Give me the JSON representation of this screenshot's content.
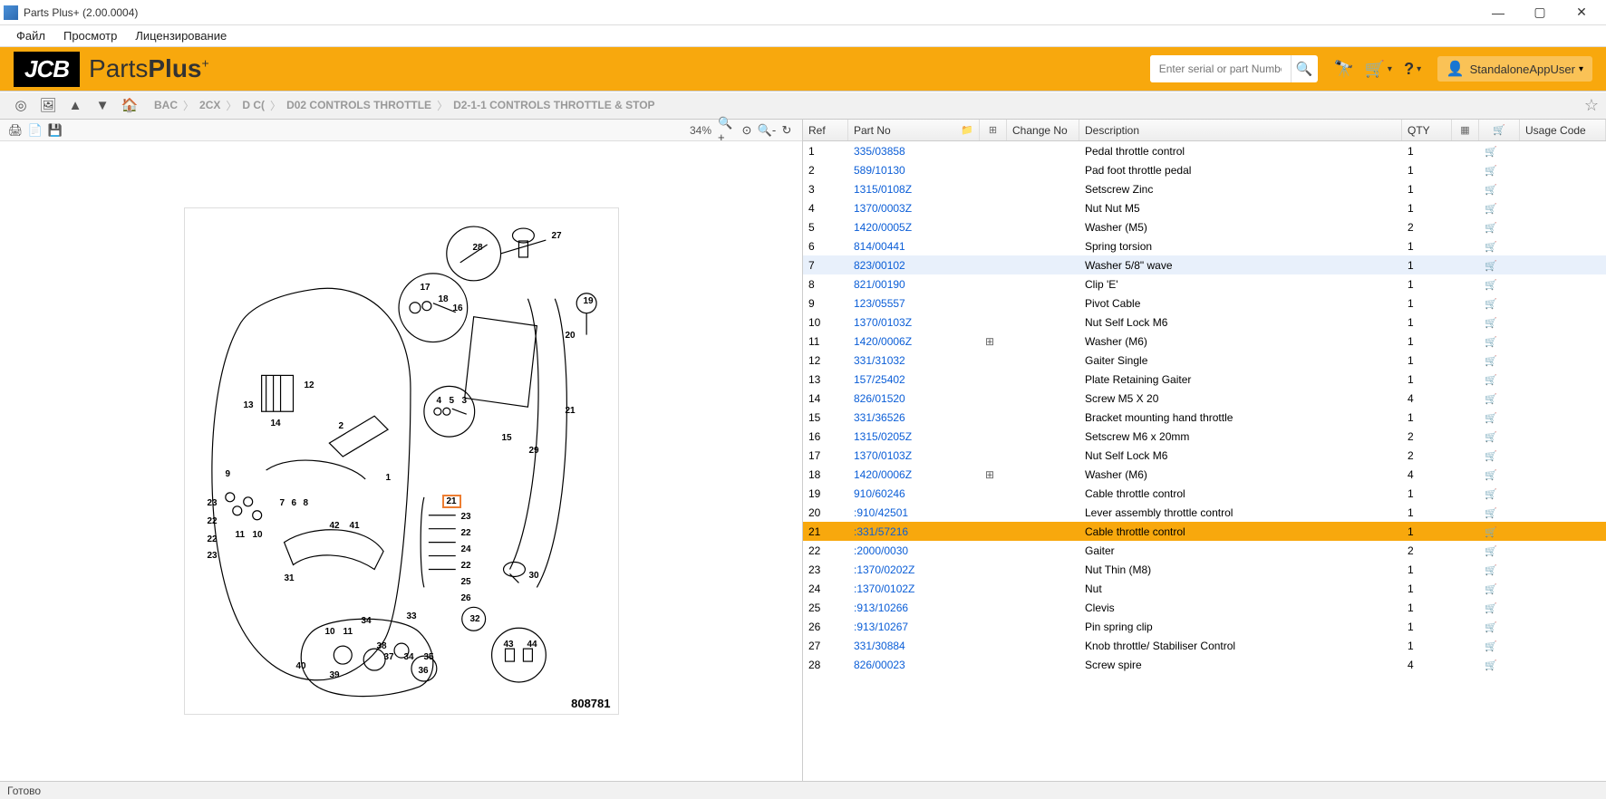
{
  "window": {
    "title": "Parts Plus+  (2.00.0004)"
  },
  "menu": {
    "file": "Файл",
    "view": "Просмотр",
    "license": "Лицензирование"
  },
  "brand": {
    "logo": "JCB",
    "name1": "Parts",
    "name2": "Plus"
  },
  "search": {
    "placeholder": "Enter serial or part Number"
  },
  "user": {
    "name": "StandaloneAppUser"
  },
  "breadcrumb": {
    "b1": "BAC",
    "b2": "2CX",
    "b3": "D C(",
    "b4": "D02 CONTROLS THROTTLE",
    "b5": "D2-1-1 CONTROLS THROTTLE & STOP"
  },
  "toolbar": {
    "zoom": "34%"
  },
  "diagram": {
    "number": "808781",
    "highlight_ref": "21"
  },
  "columns": {
    "ref": "Ref",
    "part": "Part No",
    "chg": "Change No",
    "desc": "Description",
    "qty": "QTY",
    "usage": "Usage Code"
  },
  "parts": [
    {
      "ref": "1",
      "part": "335/03858",
      "desc": "Pedal throttle control",
      "qty": "1"
    },
    {
      "ref": "2",
      "part": "589/10130",
      "desc": "Pad foot throttle pedal",
      "qty": "1"
    },
    {
      "ref": "3",
      "part": "1315/0108Z",
      "desc": "Setscrew Zinc",
      "qty": "1"
    },
    {
      "ref": "4",
      "part": "1370/0003Z",
      "desc": "Nut Nut M5",
      "qty": "1"
    },
    {
      "ref": "5",
      "part": "1420/0005Z",
      "desc": "Washer (M5)",
      "qty": "2"
    },
    {
      "ref": "6",
      "part": "814/00441",
      "desc": "Spring torsion",
      "qty": "1"
    },
    {
      "ref": "7",
      "part": "823/00102",
      "desc": "Washer 5/8\" wave",
      "qty": "1",
      "hover": true
    },
    {
      "ref": "8",
      "part": "821/00190",
      "desc": "Clip 'E'",
      "qty": "1"
    },
    {
      "ref": "9",
      "part": "123/05557",
      "desc": "Pivot Cable",
      "qty": "1"
    },
    {
      "ref": "10",
      "part": "1370/0103Z",
      "desc": "Nut Self Lock M6",
      "qty": "1"
    },
    {
      "ref": "11",
      "part": "1420/0006Z",
      "desc": "Washer (M6)",
      "qty": "1",
      "chg": true
    },
    {
      "ref": "12",
      "part": "331/31032",
      "desc": "Gaiter Single",
      "qty": "1"
    },
    {
      "ref": "13",
      "part": "157/25402",
      "desc": "Plate Retaining Gaiter",
      "qty": "1"
    },
    {
      "ref": "14",
      "part": "826/01520",
      "desc": "Screw M5 X 20",
      "qty": "4"
    },
    {
      "ref": "15",
      "part": "331/36526",
      "desc": "Bracket mounting hand throttle",
      "qty": "1"
    },
    {
      "ref": "16",
      "part": "1315/0205Z",
      "desc": "Setscrew M6 x 20mm",
      "qty": "2"
    },
    {
      "ref": "17",
      "part": "1370/0103Z",
      "desc": "Nut Self Lock M6",
      "qty": "2"
    },
    {
      "ref": "18",
      "part": "1420/0006Z",
      "desc": "Washer (M6)",
      "qty": "4",
      "chg": true
    },
    {
      "ref": "19",
      "part": "910/60246",
      "desc": "Cable throttle control",
      "qty": "1"
    },
    {
      "ref": "20",
      "part": ":910/42501",
      "desc": "Lever assembly throttle control",
      "qty": "1"
    },
    {
      "ref": "21",
      "part": ":331/57216",
      "desc": "Cable throttle control",
      "qty": "1",
      "selected": true
    },
    {
      "ref": "22",
      "part": ":2000/0030",
      "desc": "Gaiter",
      "qty": "2"
    },
    {
      "ref": "23",
      "part": ":1370/0202Z",
      "desc": "Nut Thin (M8)",
      "qty": "1"
    },
    {
      "ref": "24",
      "part": ":1370/0102Z",
      "desc": "Nut",
      "qty": "1"
    },
    {
      "ref": "25",
      "part": ":913/10266",
      "desc": "Clevis",
      "qty": "1"
    },
    {
      "ref": "26",
      "part": ":913/10267",
      "desc": "Pin spring clip",
      "qty": "1"
    },
    {
      "ref": "27",
      "part": "331/30884",
      "desc": "Knob throttle/ Stabiliser Control",
      "qty": "1"
    },
    {
      "ref": "28",
      "part": "826/00023",
      "desc": "Screw spire",
      "qty": "4"
    }
  ],
  "status": {
    "text": "Готово"
  }
}
